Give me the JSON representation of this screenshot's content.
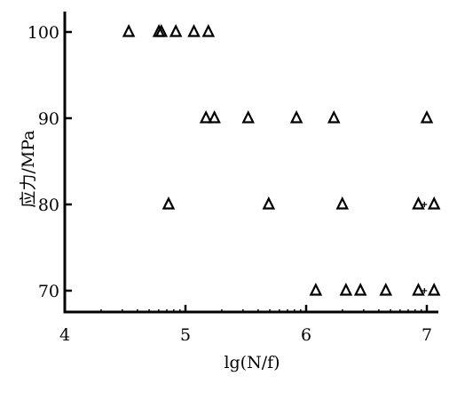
{
  "chart_data": {
    "type": "scatter",
    "title": "",
    "xlabel": "lg(N/f)",
    "ylabel": "应力/MPa",
    "xlim": [
      4,
      7.1
    ],
    "ylim": [
      67,
      103.5
    ],
    "x_ticks": [
      4,
      5,
      6,
      7
    ],
    "x_tick_labels": [
      "4",
      "5",
      "6",
      "7"
    ],
    "y_ticks": [
      70,
      80,
      90,
      100
    ],
    "y_tick_labels": [
      "70",
      "80",
      "90",
      "100"
    ],
    "grid": false,
    "legend": "none",
    "marker": "triangle-open",
    "series": [
      {
        "points": [
          [
            4.53,
            100
          ],
          [
            4.78,
            100
          ],
          [
            4.8,
            100
          ],
          [
            4.92,
            100
          ],
          [
            5.07,
            100
          ],
          [
            5.19,
            100
          ],
          [
            5.17,
            90
          ],
          [
            5.24,
            90
          ],
          [
            5.52,
            90
          ],
          [
            5.92,
            90
          ],
          [
            6.23,
            90
          ],
          [
            7.0,
            90
          ],
          [
            4.86,
            80
          ],
          [
            5.69,
            80
          ],
          [
            6.3,
            80
          ],
          [
            6.93,
            80
          ],
          [
            7.06,
            80
          ],
          [
            6.08,
            70
          ],
          [
            6.33,
            70
          ],
          [
            6.45,
            70
          ],
          [
            6.66,
            70
          ],
          [
            6.93,
            70
          ],
          [
            7.06,
            70
          ]
        ],
        "flagged_points": [
          [
            6.98,
            80
          ],
          [
            6.98,
            70
          ]
        ]
      }
    ]
  }
}
